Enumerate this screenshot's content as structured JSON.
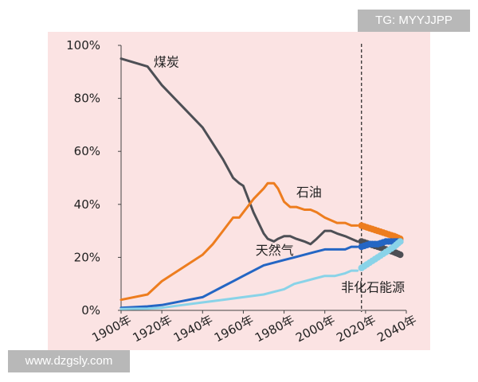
{
  "watermarks": {
    "top_right": "TG: MYYJJPP",
    "bottom_left": "www.dzgsly.com"
  },
  "colors": {
    "background": "#fbe3e3",
    "coal": "#4d4f55",
    "oil": "#ed7d1f",
    "gas": "#2466c4",
    "nonfossil": "#89d3e8",
    "divider": "#222222"
  },
  "chart_data": {
    "type": "line",
    "title": "",
    "xlabel": "",
    "ylabel": "",
    "xlim": [
      1900,
      2040
    ],
    "ylim": [
      0,
      100
    ],
    "grid": false,
    "legend": "inline-labels",
    "x_ticks": [
      "1900年",
      "1920年",
      "1940年",
      "1960年",
      "1980年",
      "2000年",
      "2020年",
      "2040年"
    ],
    "x_tick_values": [
      1900,
      1920,
      1940,
      1960,
      1980,
      2000,
      2020,
      2040
    ],
    "y_ticks": [
      "0%",
      "20%",
      "40%",
      "60%",
      "80%",
      "100%"
    ],
    "y_tick_values": [
      0,
      20,
      40,
      60,
      80,
      100
    ],
    "forecast_divider_x": 2018,
    "series": [
      {
        "name": "煤炭",
        "color_key": "coal",
        "points": [
          [
            1900,
            95
          ],
          [
            1913,
            92
          ],
          [
            1920,
            85
          ],
          [
            1930,
            77
          ],
          [
            1940,
            69
          ],
          [
            1945,
            63
          ],
          [
            1950,
            57
          ],
          [
            1955,
            50
          ],
          [
            1958,
            48
          ],
          [
            1960,
            47
          ],
          [
            1965,
            37
          ],
          [
            1970,
            29
          ],
          [
            1972,
            27
          ],
          [
            1975,
            26
          ],
          [
            1977,
            27
          ],
          [
            1980,
            28
          ],
          [
            1983,
            28
          ],
          [
            1986,
            27
          ],
          [
            1990,
            26
          ],
          [
            1993,
            25
          ],
          [
            1996,
            27
          ],
          [
            2000,
            30
          ],
          [
            2003,
            30
          ],
          [
            2006,
            29
          ],
          [
            2010,
            28
          ],
          [
            2013,
            27
          ],
          [
            2016,
            26
          ]
        ],
        "forecast": [
          [
            2018,
            26
          ],
          [
            2022,
            25
          ],
          [
            2026,
            24
          ],
          [
            2030,
            23
          ],
          [
            2034,
            22
          ],
          [
            2037,
            21
          ]
        ]
      },
      {
        "name": "石油",
        "color_key": "oil",
        "points": [
          [
            1900,
            4
          ],
          [
            1913,
            6
          ],
          [
            1920,
            11
          ],
          [
            1930,
            16
          ],
          [
            1940,
            21
          ],
          [
            1945,
            25
          ],
          [
            1950,
            30
          ],
          [
            1955,
            35
          ],
          [
            1958,
            35
          ],
          [
            1960,
            37
          ],
          [
            1965,
            42
          ],
          [
            1970,
            46
          ],
          [
            1972,
            48
          ],
          [
            1975,
            48
          ],
          [
            1977,
            46
          ],
          [
            1980,
            41
          ],
          [
            1983,
            39
          ],
          [
            1986,
            39
          ],
          [
            1990,
            38
          ],
          [
            1993,
            38
          ],
          [
            1996,
            37
          ],
          [
            2000,
            35
          ],
          [
            2003,
            34
          ],
          [
            2006,
            33
          ],
          [
            2010,
            33
          ],
          [
            2013,
            32
          ],
          [
            2016,
            32
          ]
        ],
        "forecast": [
          [
            2018,
            32
          ],
          [
            2022,
            31
          ],
          [
            2026,
            30
          ],
          [
            2030,
            29
          ],
          [
            2034,
            28
          ],
          [
            2037,
            27
          ]
        ]
      },
      {
        "name": "天然气",
        "color_key": "gas",
        "points": [
          [
            1900,
            1
          ],
          [
            1913,
            1.5
          ],
          [
            1920,
            2
          ],
          [
            1930,
            3.5
          ],
          [
            1940,
            5
          ],
          [
            1945,
            7
          ],
          [
            1950,
            9
          ],
          [
            1955,
            11
          ],
          [
            1960,
            13
          ],
          [
            1965,
            15
          ],
          [
            1970,
            17
          ],
          [
            1975,
            18
          ],
          [
            1980,
            19
          ],
          [
            1985,
            20
          ],
          [
            1990,
            21
          ],
          [
            1995,
            22
          ],
          [
            2000,
            23
          ],
          [
            2005,
            23
          ],
          [
            2010,
            23
          ],
          [
            2013,
            24
          ],
          [
            2016,
            24
          ]
        ],
        "forecast": [
          [
            2018,
            24
          ],
          [
            2022,
            25
          ],
          [
            2026,
            25
          ],
          [
            2030,
            26
          ],
          [
            2034,
            26
          ],
          [
            2037,
            26
          ]
        ]
      },
      {
        "name": "非化石能源",
        "color_key": "nonfossil",
        "points": [
          [
            1900,
            0.5
          ],
          [
            1913,
            0.7
          ],
          [
            1920,
            1
          ],
          [
            1930,
            2
          ],
          [
            1940,
            3
          ],
          [
            1950,
            4
          ],
          [
            1960,
            5
          ],
          [
            1970,
            6
          ],
          [
            1975,
            7
          ],
          [
            1980,
            8
          ],
          [
            1985,
            10
          ],
          [
            1990,
            11
          ],
          [
            1995,
            12
          ],
          [
            2000,
            13
          ],
          [
            2005,
            13
          ],
          [
            2010,
            14
          ],
          [
            2013,
            15
          ],
          [
            2016,
            15
          ]
        ],
        "forecast": [
          [
            2018,
            16
          ],
          [
            2022,
            18
          ],
          [
            2026,
            20
          ],
          [
            2030,
            22
          ],
          [
            2034,
            24
          ],
          [
            2037,
            26
          ]
        ]
      }
    ],
    "annotations": [
      {
        "text": "煤炭",
        "x": 1916,
        "y": 92
      },
      {
        "text": "石油",
        "x": 1986,
        "y": 43
      },
      {
        "text": "天然气",
        "x": 1966,
        "y": 21
      },
      {
        "text": "非化石能源",
        "x": 2008,
        "y": 7
      }
    ]
  }
}
